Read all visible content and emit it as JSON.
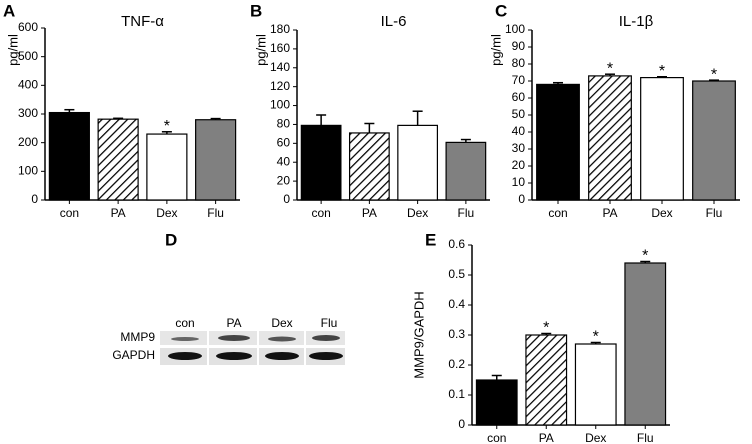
{
  "chart_data": [
    {
      "type": "bar",
      "panel": "A",
      "title": "TNF-α",
      "y_label": "pg/ml",
      "categories": [
        "con",
        "PA",
        "Dex",
        "Flu"
      ],
      "values": [
        305,
        282,
        230,
        280
      ],
      "errors": [
        10,
        3,
        8,
        4
      ],
      "markers": [
        null,
        null,
        "*",
        null
      ],
      "colors": [
        "#000000",
        "#ffffff",
        "#ffffff",
        "#808080"
      ],
      "hatch": [
        false,
        true,
        false,
        false
      ],
      "ylim": [
        0,
        600
      ],
      "yticks": [
        0,
        100,
        200,
        300,
        400,
        500,
        600
      ]
    },
    {
      "type": "bar",
      "panel": "B",
      "title": "IL-6",
      "y_label": "pg/ml",
      "categories": [
        "con",
        "PA",
        "Dex",
        "Flu"
      ],
      "values": [
        79,
        71,
        79,
        61
      ],
      "errors": [
        11,
        10,
        15,
        3
      ],
      "markers": [
        null,
        null,
        null,
        null
      ],
      "colors": [
        "#000000",
        "#ffffff",
        "#ffffff",
        "#808080"
      ],
      "hatch": [
        false,
        true,
        false,
        false
      ],
      "ylim": [
        0,
        180
      ],
      "yticks": [
        0,
        20,
        40,
        60,
        80,
        100,
        120,
        140,
        160,
        180
      ]
    },
    {
      "type": "bar",
      "panel": "C",
      "title": "IL-1β",
      "y_label": "pg/ml",
      "categories": [
        "con",
        "PA",
        "Dex",
        "Flu"
      ],
      "values": [
        68,
        73,
        72,
        70
      ],
      "errors": [
        1,
        1,
        0.5,
        0.5
      ],
      "markers": [
        null,
        "*",
        "*",
        "*"
      ],
      "colors": [
        "#000000",
        "#ffffff",
        "#ffffff",
        "#808080"
      ],
      "hatch": [
        false,
        true,
        false,
        false
      ],
      "ylim": [
        0,
        100
      ],
      "yticks": [
        0,
        10,
        20,
        30,
        40,
        50,
        60,
        70,
        80,
        90,
        100
      ]
    },
    {
      "type": "bar",
      "panel": "E",
      "y_label": "MMP9/GAPDH",
      "categories": [
        "con",
        "PA",
        "Dex",
        "Flu"
      ],
      "values": [
        0.15,
        0.3,
        0.27,
        0.54
      ],
      "errors": [
        0.015,
        0.005,
        0.005,
        0.005
      ],
      "markers": [
        null,
        "*",
        "*",
        "*"
      ],
      "colors": [
        "#000000",
        "#ffffff",
        "#ffffff",
        "#808080"
      ],
      "hatch": [
        false,
        true,
        false,
        false
      ],
      "ylim": [
        0,
        0.6
      ],
      "yticks": [
        0,
        0.1,
        0.2,
        0.3,
        0.4,
        0.5,
        0.6
      ]
    }
  ],
  "blot": {
    "panel": "D",
    "lanes": [
      "con",
      "PA",
      "Dex",
      "Flu"
    ],
    "rows": [
      "MMP9",
      "GAPDH"
    ]
  }
}
